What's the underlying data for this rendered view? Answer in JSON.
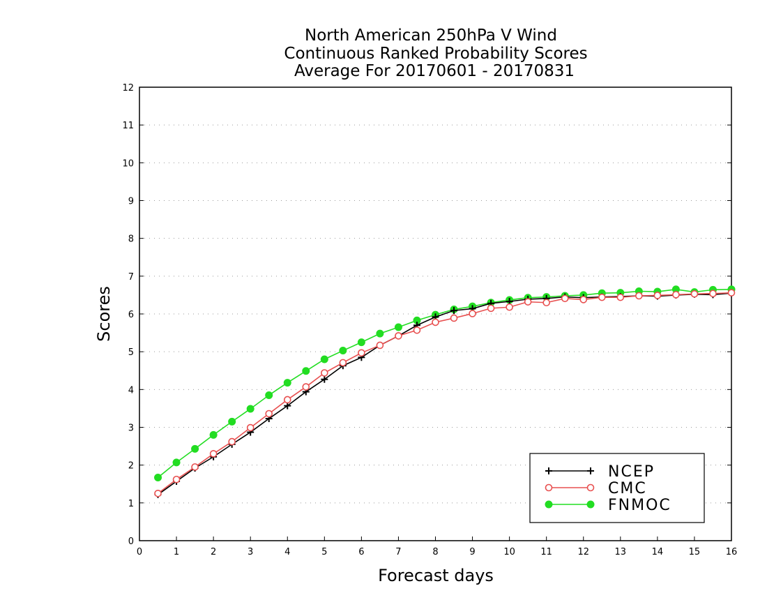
{
  "chart_data": {
    "type": "line",
    "title": [
      "North American 250hPa V Wind",
      "Continuous Ranked Probability Scores",
      "Average For 20170601 - 20170831"
    ],
    "xlabel": "Forecast days",
    "ylabel": "Scores",
    "xlim": [
      0,
      16
    ],
    "ylim": [
      0,
      12
    ],
    "xticks": [
      0,
      1,
      2,
      3,
      4,
      5,
      6,
      7,
      8,
      9,
      10,
      11,
      12,
      13,
      14,
      15,
      16
    ],
    "yticks": [
      0,
      1,
      2,
      3,
      4,
      5,
      6,
      7,
      8,
      9,
      10,
      11,
      12
    ],
    "grid": "horizontal dotted",
    "legend_position": "bottom-right",
    "x": [
      0.5,
      1,
      1.5,
      2,
      2.5,
      3,
      3.5,
      4,
      4.5,
      5,
      5.5,
      6,
      6.5,
      7,
      7.5,
      8,
      8.5,
      9,
      9.5,
      10,
      10.5,
      11,
      11.5,
      12,
      12.5,
      13,
      13.5,
      14,
      14.5,
      15,
      15.5,
      16
    ],
    "series": [
      {
        "name": "NCEP",
        "color": "#000000",
        "marker": "plus",
        "values": [
          1.22,
          1.57,
          1.92,
          2.22,
          2.55,
          2.87,
          3.23,
          3.57,
          3.94,
          4.27,
          4.63,
          4.85,
          5.17,
          5.42,
          5.7,
          5.92,
          6.09,
          6.14,
          6.28,
          6.33,
          6.39,
          6.41,
          6.45,
          6.43,
          6.45,
          6.46,
          6.48,
          6.47,
          6.5,
          6.52,
          6.51,
          6.55
        ]
      },
      {
        "name": "CMC",
        "color": "#e85050",
        "marker": "open-circle",
        "values": [
          1.25,
          1.62,
          1.95,
          2.3,
          2.62,
          2.99,
          3.36,
          3.73,
          4.07,
          4.44,
          4.71,
          4.97,
          5.17,
          5.42,
          5.57,
          5.78,
          5.89,
          6.01,
          6.15,
          6.18,
          6.32,
          6.3,
          6.41,
          6.38,
          6.44,
          6.44,
          6.48,
          6.49,
          6.51,
          6.53,
          6.54,
          6.56
        ]
      },
      {
        "name": "FNMOC",
        "color": "#22dd22",
        "marker": "filled-circle",
        "values": [
          1.67,
          2.07,
          2.43,
          2.8,
          3.15,
          3.49,
          3.85,
          4.18,
          4.49,
          4.8,
          5.03,
          5.25,
          5.48,
          5.65,
          5.83,
          5.98,
          6.12,
          6.2,
          6.3,
          6.37,
          6.43,
          6.45,
          6.48,
          6.5,
          6.55,
          6.56,
          6.6,
          6.59,
          6.65,
          6.58,
          6.64,
          6.65
        ]
      }
    ]
  }
}
